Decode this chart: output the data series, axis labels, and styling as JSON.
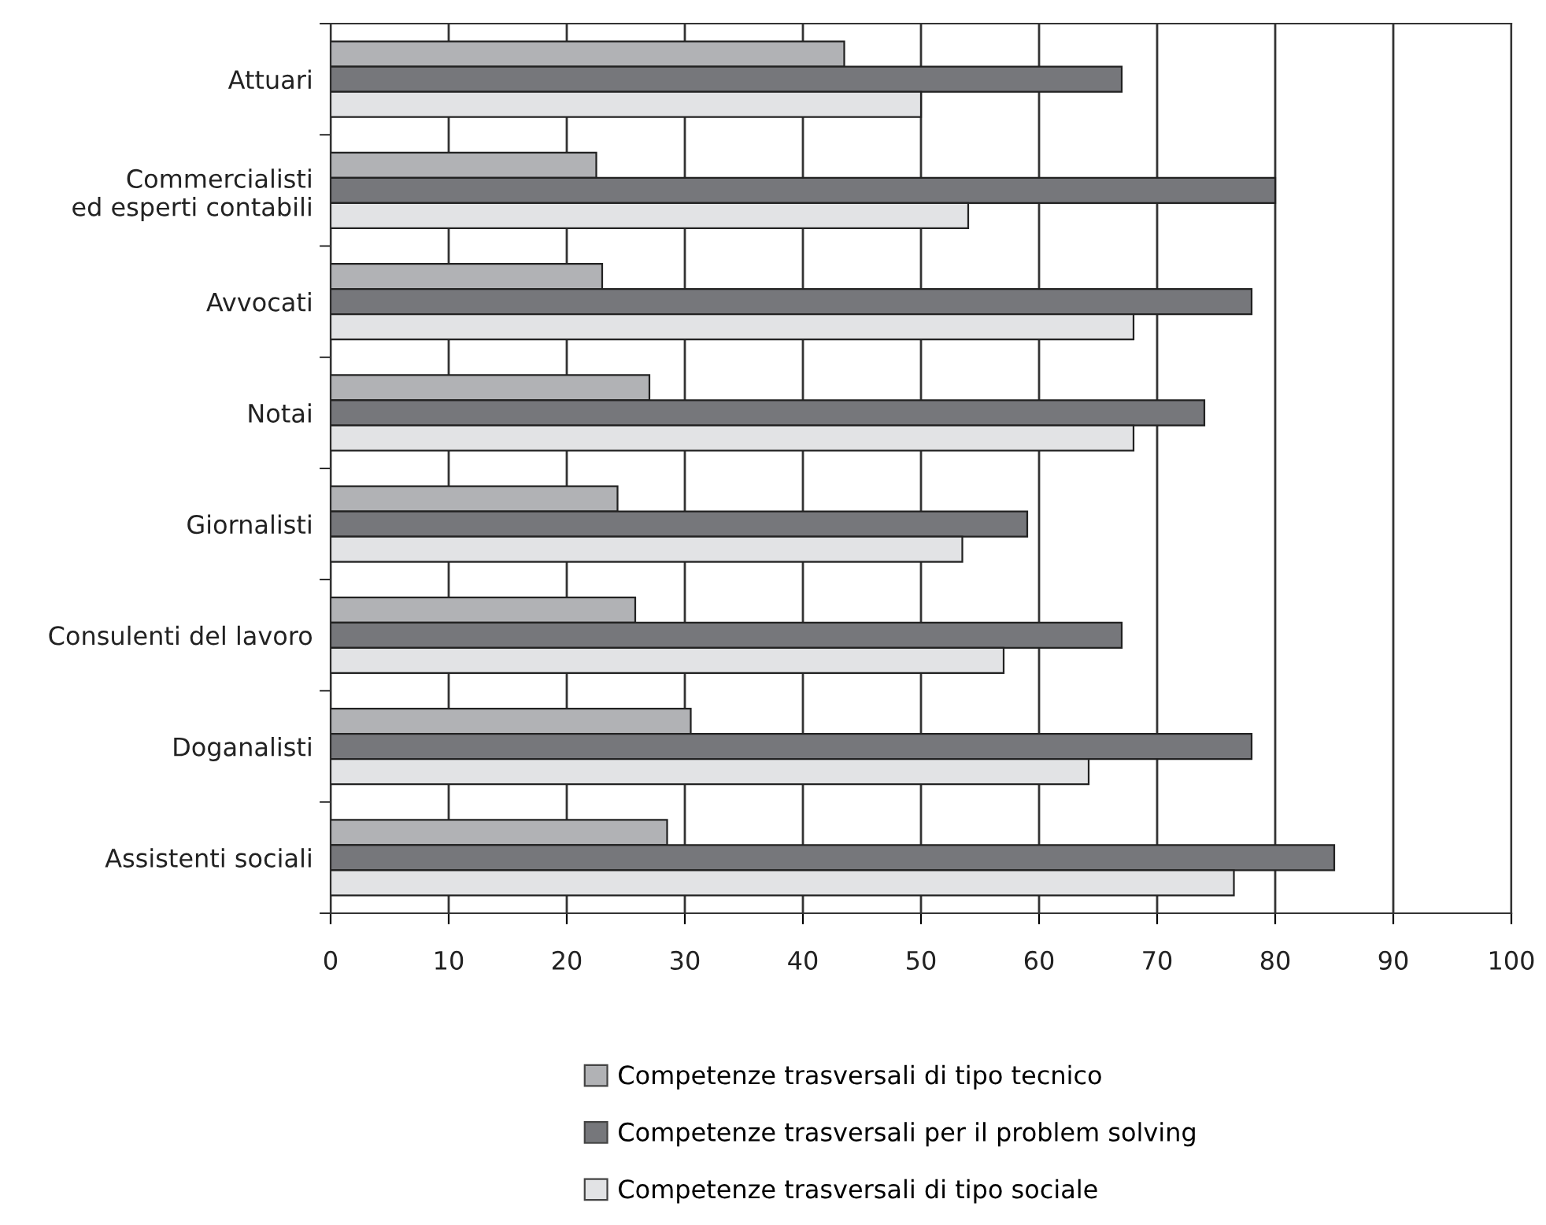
{
  "chart_data": {
    "type": "bar",
    "orientation": "horizontal",
    "categories": [
      "Attuari",
      "Commercialisti\ned esperti contabili",
      "Avvocati",
      "Notai",
      "Giornalisti",
      "Consulenti del lavoro",
      "Doganalisti",
      "Assistenti sociali"
    ],
    "series": [
      {
        "name": "Competenze trasversali di tipo tecnico",
        "color": "#b1b2b5",
        "values": [
          43.5,
          22.5,
          23,
          27,
          24.3,
          25.8,
          30.5,
          28.5
        ]
      },
      {
        "name": "Competenze trasversali per il problem solving",
        "color": "#76777b",
        "values": [
          67,
          80,
          78,
          74,
          59,
          67,
          78,
          85
        ]
      },
      {
        "name": "Competenze trasversali di tipo sociale",
        "color": "#e2e3e5",
        "values": [
          50,
          54,
          68,
          68,
          53.5,
          57,
          64.2,
          76.5
        ]
      }
    ],
    "xlim": [
      0,
      100
    ],
    "xticks": [
      0,
      10,
      20,
      30,
      40,
      50,
      60,
      70,
      80,
      90,
      100
    ],
    "grid": "x",
    "legend": "bottom"
  }
}
